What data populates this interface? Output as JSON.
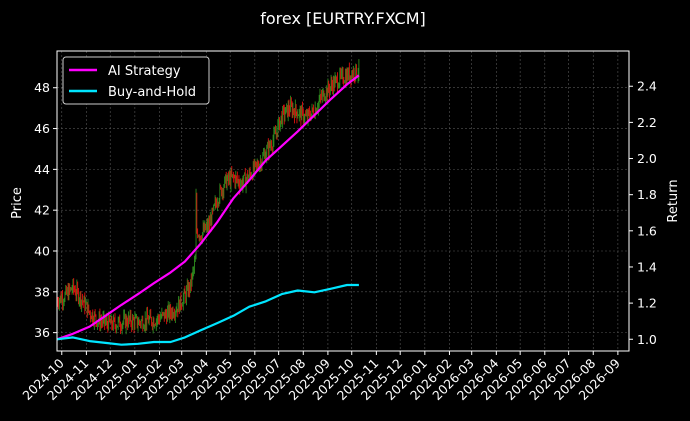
{
  "chart_data": {
    "type": "line",
    "title": "forex [EURTRY.FXCM]",
    "xlabel": "",
    "ylabel": "Price",
    "y2label": "Return",
    "x_ticks": [
      "2024-10",
      "2024-11",
      "2024-12",
      "2025-01",
      "2025-02",
      "2025-03",
      "2025-04",
      "2025-05",
      "2025-06",
      "2025-07",
      "2025-08",
      "2025-09",
      "2025-10",
      "2025-11",
      "2025-12",
      "2026-01",
      "2026-02",
      "2026-03",
      "2026-04",
      "2026-05",
      "2026-06",
      "2026-07",
      "2026-08",
      "2026-09"
    ],
    "xlim": [
      "2024-09-25",
      "2026-09-15"
    ],
    "ylim": [
      35.1,
      49.8
    ],
    "y_ticks": [
      36,
      38,
      40,
      42,
      44,
      46,
      48
    ],
    "y2lim": [
      0.935,
      2.595
    ],
    "y2_ticks": [
      "1.0",
      "1.2",
      "1.4",
      "1.6",
      "1.8",
      "2.0",
      "2.2",
      "2.4"
    ],
    "grid": true,
    "legend_position": "top-left",
    "price_series": {
      "name": "Price",
      "x": [
        "2024-09-25",
        "2024-10-05",
        "2024-10-15",
        "2024-10-25",
        "2024-11-05",
        "2024-11-15",
        "2024-11-25",
        "2024-12-05",
        "2024-12-15",
        "2024-12-25",
        "2025-01-05",
        "2025-01-15",
        "2025-01-25",
        "2025-02-05",
        "2025-02-15",
        "2025-02-25",
        "2025-03-05",
        "2025-03-12",
        "2025-03-18",
        "2025-03-19",
        "2025-03-20",
        "2025-03-25",
        "2025-04-05",
        "2025-04-15",
        "2025-04-25",
        "2025-05-05",
        "2025-05-15",
        "2025-05-25",
        "2025-06-05",
        "2025-06-15",
        "2025-06-25",
        "2025-07-05",
        "2025-07-15",
        "2025-07-25",
        "2025-08-05",
        "2025-08-15",
        "2025-08-25",
        "2025-09-05",
        "2025-09-15",
        "2025-09-25",
        "2025-10-05",
        "2025-10-10"
      ],
      "values": [
        37.6,
        37.8,
        38.2,
        37.7,
        37.0,
        36.6,
        36.5,
        36.4,
        36.5,
        36.6,
        36.5,
        36.6,
        36.6,
        36.8,
        37.0,
        37.3,
        37.8,
        38.3,
        39.5,
        42.5,
        41.0,
        40.8,
        41.3,
        42.6,
        43.4,
        43.6,
        43.3,
        43.7,
        44.2,
        44.8,
        45.5,
        46.6,
        47.0,
        46.8,
        46.5,
        46.9,
        47.6,
        48.1,
        48.4,
        48.6,
        48.8,
        48.8
      ]
    },
    "series": [
      {
        "name": "AI Strategy",
        "color": "#ff00ff",
        "x": [
          "2024-09-25",
          "2024-10-15",
          "2024-11-05",
          "2024-11-25",
          "2024-12-15",
          "2025-01-05",
          "2025-01-25",
          "2025-02-15",
          "2025-03-05",
          "2025-03-25",
          "2025-04-15",
          "2025-05-05",
          "2025-05-25",
          "2025-06-15",
          "2025-07-05",
          "2025-07-25",
          "2025-08-15",
          "2025-09-05",
          "2025-09-25",
          "2025-10-10"
        ],
        "values": [
          1.0,
          1.03,
          1.07,
          1.13,
          1.19,
          1.25,
          1.31,
          1.37,
          1.43,
          1.53,
          1.65,
          1.78,
          1.88,
          1.99,
          2.07,
          2.15,
          2.24,
          2.33,
          2.41,
          2.46
        ]
      },
      {
        "name": "Buy-and-Hold",
        "color": "#00e5ff",
        "x": [
          "2024-09-25",
          "2024-10-15",
          "2024-11-05",
          "2024-11-25",
          "2024-12-15",
          "2025-01-05",
          "2025-01-25",
          "2025-02-15",
          "2025-03-05",
          "2025-03-25",
          "2025-04-15",
          "2025-05-05",
          "2025-05-25",
          "2025-06-15",
          "2025-07-05",
          "2025-07-25",
          "2025-08-15",
          "2025-09-05",
          "2025-09-25",
          "2025-10-10"
        ],
        "values": [
          1.0,
          1.01,
          0.99,
          0.98,
          0.97,
          0.975,
          0.985,
          0.985,
          1.01,
          1.05,
          1.09,
          1.13,
          1.18,
          1.21,
          1.25,
          1.27,
          1.26,
          1.28,
          1.3,
          1.3
        ]
      }
    ]
  }
}
